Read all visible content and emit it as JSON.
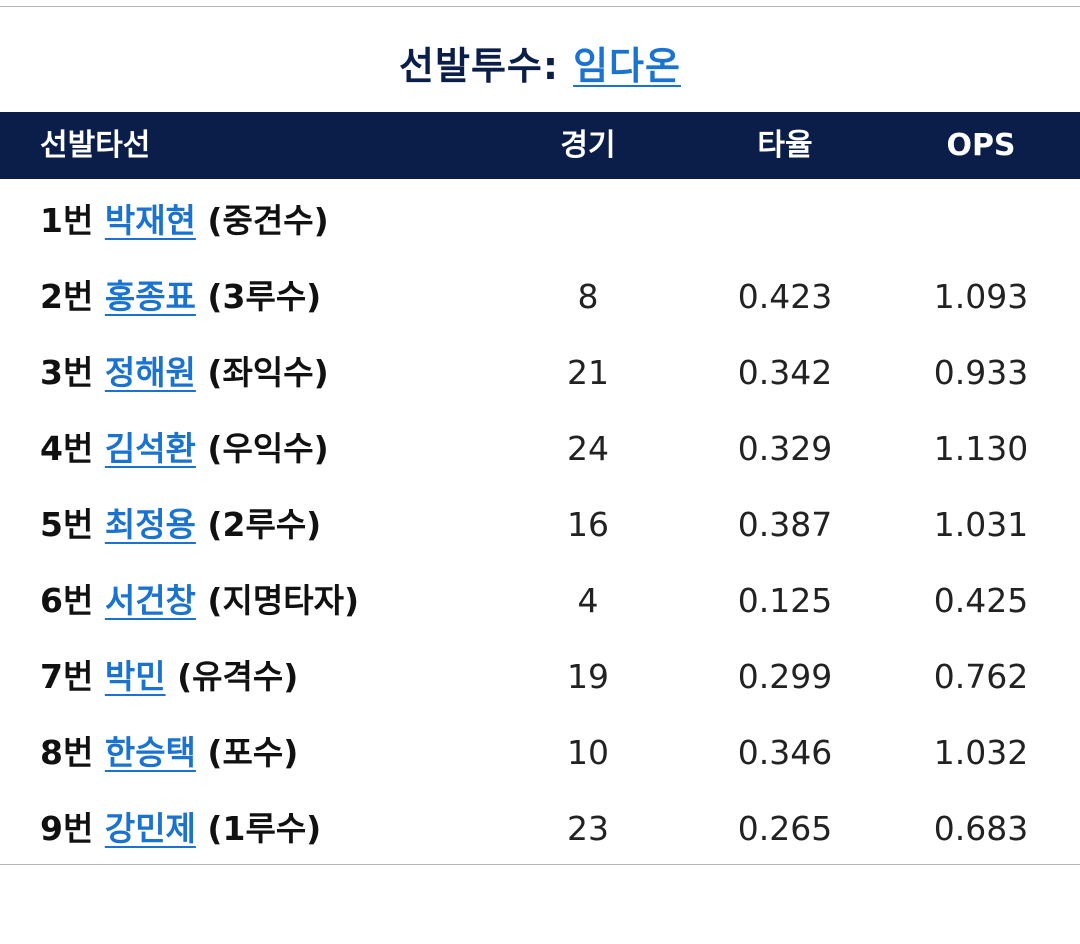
{
  "pitcher": {
    "label": "선발투수:",
    "name": "임다온"
  },
  "table": {
    "headers": {
      "lineup": "선발타선",
      "games": "경기",
      "avg": "타율",
      "ops": "OPS"
    },
    "rows": [
      {
        "order": "1번",
        "name": "박재현",
        "position": "(중견수)",
        "games": "",
        "avg": "",
        "ops": ""
      },
      {
        "order": "2번",
        "name": "홍종표",
        "position": "(3루수)",
        "games": "8",
        "avg": "0.423",
        "ops": "1.093"
      },
      {
        "order": "3번",
        "name": "정해원",
        "position": "(좌익수)",
        "games": "21",
        "avg": "0.342",
        "ops": "0.933"
      },
      {
        "order": "4번",
        "name": "김석환",
        "position": "(우익수)",
        "games": "24",
        "avg": "0.329",
        "ops": "1.130"
      },
      {
        "order": "5번",
        "name": "최정용",
        "position": "(2루수)",
        "games": "16",
        "avg": "0.387",
        "ops": "1.031"
      },
      {
        "order": "6번",
        "name": "서건창",
        "position": "(지명타자)",
        "games": "4",
        "avg": "0.125",
        "ops": "0.425"
      },
      {
        "order": "7번",
        "name": "박민",
        "position": "(유격수)",
        "games": "19",
        "avg": "0.299",
        "ops": "0.762"
      },
      {
        "order": "8번",
        "name": "한승택",
        "position": "(포수)",
        "games": "10",
        "avg": "0.346",
        "ops": "1.032"
      },
      {
        "order": "9번",
        "name": "강민제",
        "position": "(1루수)",
        "games": "23",
        "avg": "0.265",
        "ops": "0.683"
      }
    ]
  },
  "colors": {
    "header_bg": "#0b1e4a",
    "link": "#1a73d0",
    "title": "#0b1e4a"
  }
}
